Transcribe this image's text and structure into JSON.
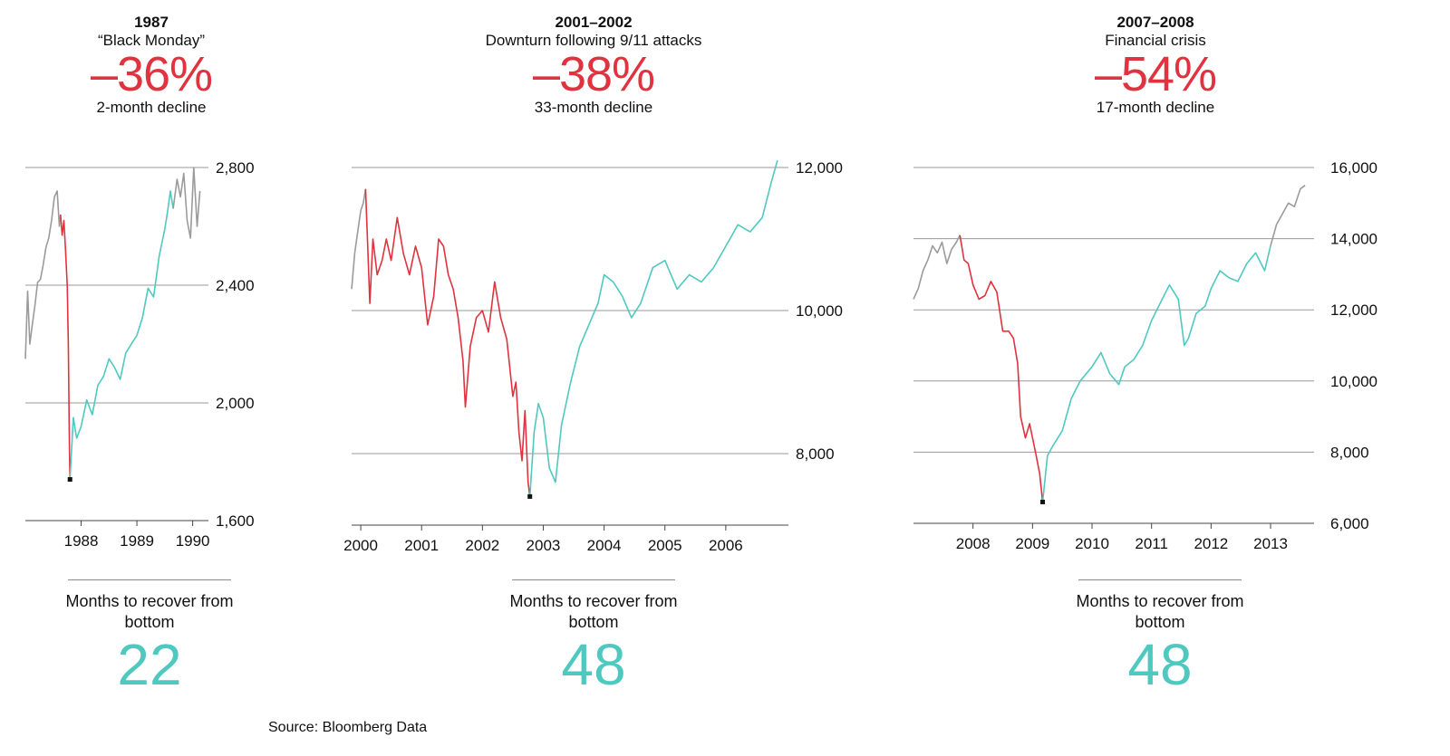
{
  "source": "Source: Bloomberg Data",
  "recovery_label": "Months to recover from bottom",
  "colors": {
    "decline": "#e0323f",
    "recovery": "#4fc9c0",
    "pre": "#9b9b9b",
    "grid": "#9a9a9a"
  },
  "chart_data": [
    {
      "type": "line",
      "title": "1987",
      "subtitle": "“Black Monday”",
      "decline_pct": "–36%",
      "decline_desc": "2-month decline",
      "recovery_months": "22",
      "x_ticks": [
        "1988",
        "1989",
        "1990"
      ],
      "x_tick_values": [
        1988,
        1989,
        1990
      ],
      "y_ticks": [
        "1,600",
        "2,000",
        "2,400",
        "2,800"
      ],
      "y_tick_values": [
        1600,
        2000,
        2400,
        2800
      ],
      "xlim": [
        1987.0,
        1990.25
      ],
      "ylim": [
        1600,
        2800
      ],
      "grid": true,
      "series": [
        {
          "phase": "pre",
          "x": [
            1987.0,
            1987.04,
            1987.08,
            1987.12,
            1987.17,
            1987.22,
            1987.27,
            1987.32,
            1987.37,
            1987.42,
            1987.47,
            1987.52,
            1987.57,
            1987.61,
            1987.63
          ],
          "y": [
            2150,
            2380,
            2200,
            2260,
            2330,
            2410,
            2420,
            2470,
            2530,
            2560,
            2620,
            2700,
            2720,
            2600,
            2640
          ]
        },
        {
          "phase": "decline",
          "x": [
            1987.63,
            1987.66,
            1987.69,
            1987.72,
            1987.75,
            1987.77,
            1987.79,
            1987.8
          ],
          "y": [
            2640,
            2570,
            2620,
            2520,
            2400,
            2200,
            1850,
            1740
          ]
        },
        {
          "phase": "recovery",
          "x": [
            1987.8,
            1987.86,
            1987.92,
            1988.0,
            1988.1,
            1988.2,
            1988.3,
            1988.4,
            1988.5,
            1988.6,
            1988.7,
            1988.8,
            1988.9,
            1989.0,
            1989.1,
            1989.2,
            1989.3,
            1989.4,
            1989.5,
            1989.55,
            1989.6,
            1989.65
          ],
          "y": [
            1740,
            1950,
            1880,
            1920,
            2010,
            1960,
            2060,
            2090,
            2150,
            2120,
            2080,
            2170,
            2200,
            2230,
            2290,
            2390,
            2360,
            2500,
            2590,
            2650,
            2720,
            2660
          ]
        },
        {
          "phase": "pre",
          "x": [
            1989.65,
            1989.72,
            1989.78,
            1989.84,
            1989.9,
            1989.96,
            1990.02,
            1990.08,
            1990.13
          ],
          "y": [
            2660,
            2760,
            2700,
            2780,
            2620,
            2560,
            2800,
            2600,
            2720
          ]
        }
      ],
      "low": {
        "x": 1987.8,
        "y": 1740
      }
    },
    {
      "type": "line",
      "title": "2001–2002",
      "subtitle": "Downturn following 9/11 attacks",
      "decline_pct": "–38%",
      "decline_desc": "33-month decline",
      "recovery_months": "48",
      "x_ticks": [
        "2000",
        "2001",
        "2002",
        "2003",
        "2004",
        "2005",
        "2006"
      ],
      "x_tick_values": [
        2000,
        2001,
        2002,
        2003,
        2004,
        2005,
        2006
      ],
      "y_ticks": [
        "8,000",
        "10,000",
        "12,000"
      ],
      "y_tick_values": [
        8000,
        10000,
        12000
      ],
      "xlim": [
        1999.85,
        2007.0
      ],
      "ylim": [
        7000,
        12000
      ],
      "grid": true,
      "series": [
        {
          "phase": "pre",
          "x": [
            1999.85,
            1999.9,
            1999.95,
            2000.0,
            2000.04,
            2000.08
          ],
          "y": [
            10300,
            10800,
            11100,
            11400,
            11500,
            11700
          ]
        },
        {
          "phase": "decline",
          "x": [
            2000.08,
            2000.15,
            2000.2,
            2000.27,
            2000.35,
            2000.42,
            2000.5,
            2000.6,
            2000.7,
            2000.8,
            2000.9,
            2001.0,
            2001.1,
            2001.2,
            2001.28,
            2001.36,
            2001.44,
            2001.52,
            2001.6,
            2001.68,
            2001.72,
            2001.8,
            2001.9,
            2002.0,
            2002.1,
            2002.2,
            2002.3,
            2002.4,
            2002.5,
            2002.55,
            2002.6,
            2002.65,
            2002.7,
            2002.75,
            2002.78
          ],
          "y": [
            11700,
            10100,
            11000,
            10500,
            10700,
            11000,
            10700,
            11300,
            10800,
            10500,
            10900,
            10600,
            9800,
            10200,
            11000,
            10900,
            10500,
            10300,
            9900,
            9300,
            8650,
            9500,
            9900,
            10000,
            9700,
            10400,
            9900,
            9600,
            8800,
            9000,
            8300,
            7900,
            8600,
            7600,
            7400
          ]
        },
        {
          "phase": "recovery",
          "x": [
            2002.78,
            2002.85,
            2002.92,
            2003.0,
            2003.1,
            2003.2,
            2003.3,
            2003.45,
            2003.6,
            2003.75,
            2003.9,
            2004.0,
            2004.15,
            2004.3,
            2004.45,
            2004.6,
            2004.8,
            2005.0,
            2005.2,
            2005.4,
            2005.6,
            2005.8,
            2006.0,
            2006.2,
            2006.4,
            2006.6,
            2006.75,
            2006.85
          ],
          "y": [
            7400,
            8300,
            8700,
            8500,
            7800,
            7600,
            8400,
            9000,
            9500,
            9800,
            10100,
            10500,
            10400,
            10200,
            9900,
            10100,
            10600,
            10700,
            10300,
            10500,
            10400,
            10600,
            10900,
            11200,
            11100,
            11300,
            11800,
            12100
          ]
        }
      ],
      "low": {
        "x": 2002.78,
        "y": 7400
      }
    },
    {
      "type": "line",
      "title": "2007–2008",
      "subtitle": "Financial crisis",
      "decline_pct": "–54%",
      "decline_desc": "17-month decline",
      "recovery_months": "48",
      "x_ticks": [
        "2008",
        "2009",
        "2010",
        "2011",
        "2012",
        "2013"
      ],
      "x_tick_values": [
        2008,
        2009,
        2010,
        2011,
        2012,
        2013
      ],
      "y_ticks": [
        "6,000",
        "8,000",
        "10,000",
        "12,000",
        "14,000",
        "16,000"
      ],
      "y_tick_values": [
        6000,
        8000,
        10000,
        12000,
        14000,
        16000
      ],
      "xlim": [
        2007.0,
        2013.7
      ],
      "ylim": [
        6000,
        16000
      ],
      "grid": true,
      "series": [
        {
          "phase": "pre",
          "x": [
            2007.0,
            2007.08,
            2007.16,
            2007.24,
            2007.32,
            2007.4,
            2007.48,
            2007.56,
            2007.64,
            2007.72,
            2007.78
          ],
          "y": [
            12300,
            12600,
            13100,
            13400,
            13800,
            13600,
            13900,
            13300,
            13700,
            13900,
            14100
          ]
        },
        {
          "phase": "decline",
          "x": [
            2007.78,
            2007.85,
            2007.92,
            2008.0,
            2008.1,
            2008.2,
            2008.3,
            2008.4,
            2008.5,
            2008.6,
            2008.68,
            2008.75,
            2008.8,
            2008.88,
            2008.95,
            2009.05,
            2009.12,
            2009.17
          ],
          "y": [
            14100,
            13400,
            13300,
            12700,
            12300,
            12400,
            12800,
            12500,
            11400,
            11400,
            11200,
            10500,
            9000,
            8400,
            8800,
            8000,
            7400,
            6600
          ]
        },
        {
          "phase": "recovery",
          "x": [
            2009.17,
            2009.25,
            2009.35,
            2009.5,
            2009.65,
            2009.8,
            2010.0,
            2010.15,
            2010.3,
            2010.45,
            2010.55,
            2010.7,
            2010.85,
            2011.0,
            2011.15,
            2011.3,
            2011.45,
            2011.55,
            2011.62,
            2011.75,
            2011.9,
            2012.0,
            2012.15,
            2012.3,
            2012.45,
            2012.6,
            2012.75,
            2012.9,
            2013.0
          ],
          "y": [
            6600,
            7900,
            8200,
            8600,
            9500,
            10000,
            10400,
            10800,
            10200,
            9900,
            10400,
            10600,
            11000,
            11700,
            12200,
            12700,
            12300,
            11000,
            11200,
            11900,
            12100,
            12600,
            13100,
            12900,
            12800,
            13300,
            13600,
            13100,
            13800
          ]
        },
        {
          "phase": "pre",
          "x": [
            2013.0,
            2013.1,
            2013.2,
            2013.3,
            2013.4,
            2013.5,
            2013.58
          ],
          "y": [
            13800,
            14400,
            14700,
            15000,
            14900,
            15400,
            15500
          ]
        }
      ],
      "low": {
        "x": 2009.17,
        "y": 6600
      }
    }
  ]
}
